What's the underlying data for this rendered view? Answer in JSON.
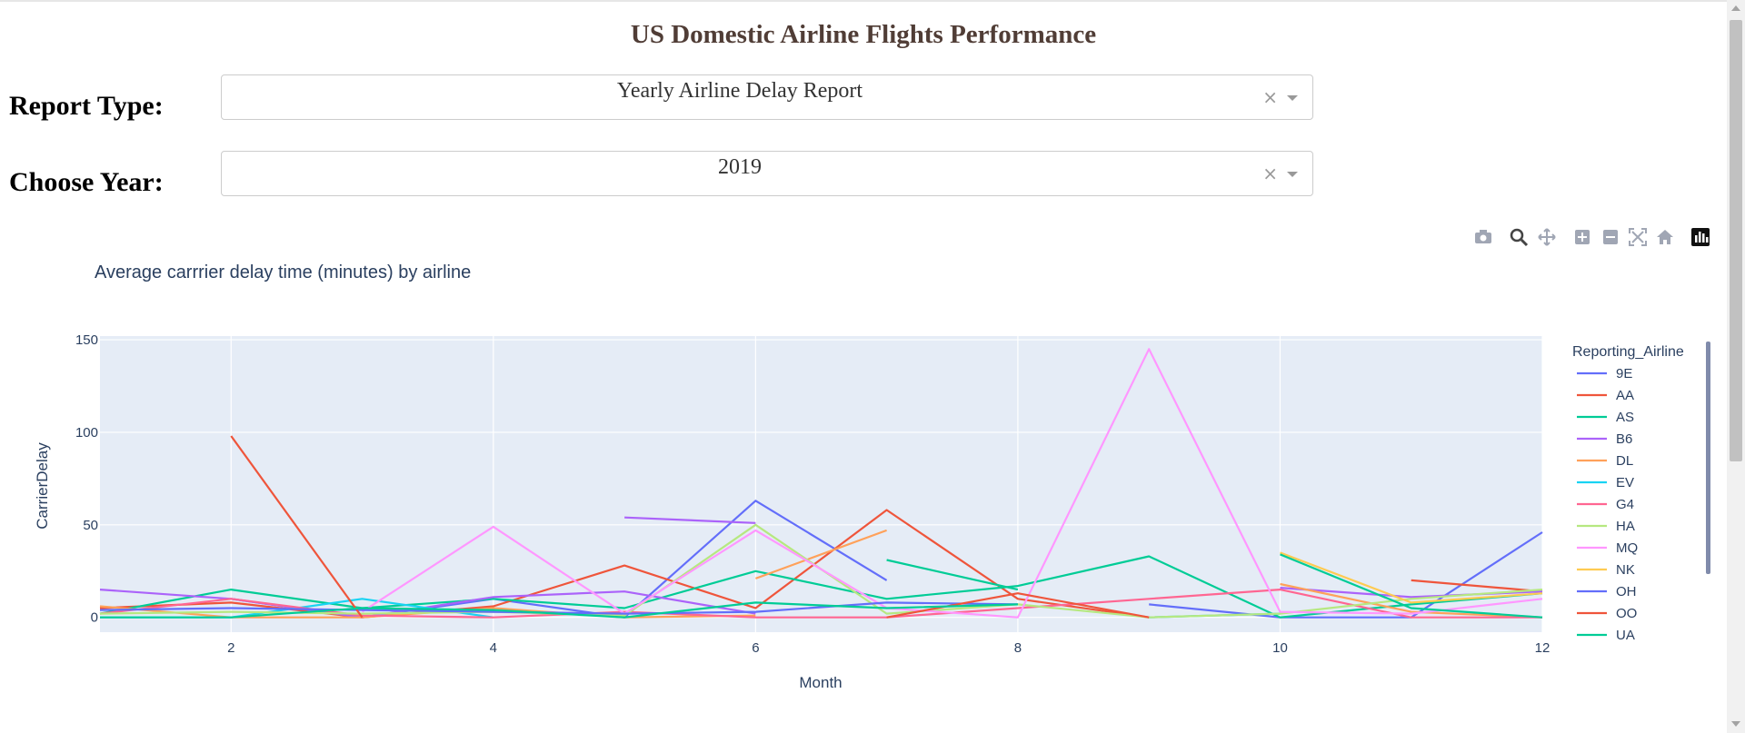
{
  "page": {
    "title": "US Domestic Airline Flights Performance",
    "report_type_label": "Report Type:",
    "report_type_value": "Yearly Airline Delay Report",
    "year_label": "Choose Year:",
    "year_value": "2019",
    "clear_symbol": "×"
  },
  "modebar": [
    "camera-icon",
    "zoom-icon",
    "pan-icon",
    "zoom-in-icon",
    "zoom-out-icon",
    "autoscale-icon",
    "reset-axes-icon",
    "plotly-logo-icon"
  ],
  "chart_data": {
    "type": "line",
    "title": "Average carrrier delay time (minutes) by airline",
    "xlabel": "Month",
    "ylabel": "CarrierDelay",
    "xlim": [
      1,
      12
    ],
    "ylim": [
      -8,
      152
    ],
    "xticks": [
      2,
      4,
      6,
      8,
      10,
      12
    ],
    "yticks": [
      0,
      50,
      100,
      150
    ],
    "grid": true,
    "legend_title": "Reporting_Airline",
    "legend_position": "right",
    "series": [
      {
        "name": "9E",
        "color": "#636efa",
        "points": [
          [
            2,
            10
          ],
          [
            3,
            0
          ],
          [
            4,
            10
          ],
          [
            5,
            0
          ],
          [
            6,
            63
          ],
          [
            7,
            20
          ],
          [
            null,
            null
          ],
          [
            9,
            7
          ],
          [
            10,
            0
          ],
          [
            11,
            0
          ],
          [
            12,
            46
          ]
        ]
      },
      {
        "name": "AA",
        "color": "#EF553B",
        "points": [
          [
            1,
            5
          ],
          [
            2,
            8
          ],
          [
            3,
            0
          ],
          [
            4,
            6
          ],
          [
            5,
            28
          ],
          [
            6,
            5
          ],
          [
            7,
            58
          ],
          [
            8,
            10
          ],
          [
            9,
            0
          ],
          [
            null,
            null
          ],
          [
            11,
            20
          ],
          [
            12,
            14
          ]
        ]
      },
      {
        "name": "AS",
        "color": "#00cc96",
        "points": [
          [
            1,
            2
          ],
          [
            2,
            15
          ],
          [
            3,
            5
          ],
          [
            4,
            10
          ],
          [
            5,
            5
          ],
          [
            6,
            25
          ],
          [
            7,
            10
          ],
          [
            8,
            17
          ],
          [
            9,
            33
          ],
          [
            10,
            0
          ],
          [
            11,
            7
          ],
          [
            12,
            13
          ]
        ]
      },
      {
        "name": "B6",
        "color": "#ab63fa",
        "points": [
          [
            1,
            15
          ],
          [
            2,
            10
          ],
          [
            3,
            0
          ],
          [
            4,
            11
          ],
          [
            5,
            14
          ],
          [
            6,
            2
          ],
          [
            null,
            null
          ],
          [
            5,
            54
          ],
          [
            6,
            51
          ],
          [
            null,
            null
          ],
          [
            10,
            16
          ],
          [
            11,
            11
          ],
          [
            12,
            14
          ]
        ]
      },
      {
        "name": "DL",
        "color": "#FFA15A",
        "points": [
          [
            1,
            6
          ],
          [
            2,
            0
          ],
          [
            3,
            0
          ],
          [
            4,
            5
          ],
          [
            5,
            0
          ],
          [
            6,
            1
          ],
          [
            null,
            null
          ],
          [
            6,
            21
          ],
          [
            7,
            47
          ],
          [
            null,
            null
          ],
          [
            10,
            18
          ],
          [
            11,
            3
          ],
          [
            12,
            0
          ]
        ]
      },
      {
        "name": "EV",
        "color": "#19d3f3",
        "points": [
          [
            1,
            0
          ],
          [
            2,
            0
          ],
          [
            3,
            10
          ],
          [
            4,
            0
          ],
          [
            null,
            null
          ],
          [
            9,
            0
          ],
          [
            10,
            2
          ]
        ]
      },
      {
        "name": "G4",
        "color": "#FF6692",
        "points": [
          [
            1,
            2
          ],
          [
            2,
            10
          ],
          [
            3,
            1
          ],
          [
            4,
            0
          ],
          [
            5,
            3
          ],
          [
            6,
            0
          ],
          [
            7,
            0
          ],
          [
            8,
            5
          ],
          [
            9,
            10
          ],
          [
            10,
            15
          ],
          [
            11,
            0
          ],
          [
            12,
            0
          ]
        ]
      },
      {
        "name": "HA",
        "color": "#B6E880",
        "points": [
          [
            1,
            2
          ],
          [
            2,
            3
          ],
          [
            3,
            2
          ],
          [
            4,
            3
          ],
          [
            5,
            1
          ],
          [
            6,
            50
          ],
          [
            7,
            2
          ],
          [
            8,
            7
          ],
          [
            9,
            0
          ],
          [
            10,
            2
          ],
          [
            11,
            10
          ],
          [
            12,
            15
          ]
        ]
      },
      {
        "name": "MQ",
        "color": "#FF97FF",
        "points": [
          [
            3,
            3
          ],
          [
            4,
            49
          ],
          [
            5,
            2
          ],
          [
            6,
            47
          ],
          [
            7,
            5
          ],
          [
            8,
            0
          ],
          [
            9,
            145
          ],
          [
            10,
            3
          ],
          [
            11,
            2
          ],
          [
            12,
            10
          ]
        ]
      },
      {
        "name": "NK",
        "color": "#FECB52",
        "points": [
          [
            10,
            35
          ],
          [
            11,
            8
          ],
          [
            12,
            13
          ]
        ]
      },
      {
        "name": "OH",
        "color": "#636efa",
        "points": [
          [
            1,
            4
          ],
          [
            2,
            5
          ],
          [
            3,
            4
          ],
          [
            4,
            3
          ],
          [
            5,
            2
          ],
          [
            6,
            3
          ],
          [
            7,
            8
          ],
          [
            8,
            7
          ],
          [
            null,
            null
          ],
          [
            10,
            0
          ]
        ]
      },
      {
        "name": "OO",
        "color": "#EF553B",
        "points": [
          [
            2,
            98
          ],
          [
            3,
            0
          ],
          [
            null,
            null
          ],
          [
            7,
            0
          ],
          [
            8,
            13
          ],
          [
            9,
            0
          ]
        ]
      },
      {
        "name": "UA",
        "color": "#00cc96",
        "points": [
          [
            1,
            0
          ],
          [
            2,
            0
          ],
          [
            3,
            5
          ],
          [
            4,
            4
          ],
          [
            5,
            0
          ],
          [
            6,
            8
          ],
          [
            7,
            5
          ],
          [
            8,
            7
          ],
          [
            null,
            null
          ],
          [
            7,
            31
          ],
          [
            8,
            15
          ],
          [
            null,
            null
          ],
          [
            10,
            34
          ],
          [
            11,
            5
          ],
          [
            12,
            0
          ]
        ]
      }
    ]
  }
}
